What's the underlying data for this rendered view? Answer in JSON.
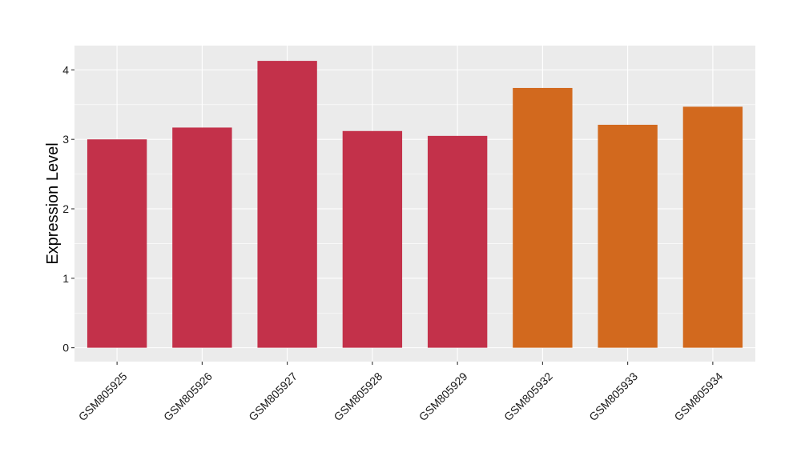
{
  "chart_data": {
    "type": "bar",
    "title": "",
    "xlabel": "",
    "ylabel": "Expression Level",
    "categories": [
      "GSM805925",
      "GSM805926",
      "GSM805927",
      "GSM805928",
      "GSM805929",
      "GSM805932",
      "GSM805933",
      "GSM805934"
    ],
    "values": [
      3.0,
      3.17,
      4.13,
      3.12,
      3.05,
      3.74,
      3.21,
      3.47
    ],
    "bar_colors": [
      "#C3314A",
      "#C3314A",
      "#C3314A",
      "#C3314A",
      "#C3314A",
      "#D2691E",
      "#D2691E",
      "#D2691E"
    ],
    "ylim": [
      -0.2,
      4.35
    ],
    "yticks": [
      0,
      1,
      2,
      3,
      4
    ],
    "ytick_labels": [
      "0",
      "1",
      "2",
      "3",
      "4"
    ],
    "grid": true,
    "legend": "none",
    "panel_background": "#EBEBEB",
    "gridline_color": "#FFFFFF"
  }
}
